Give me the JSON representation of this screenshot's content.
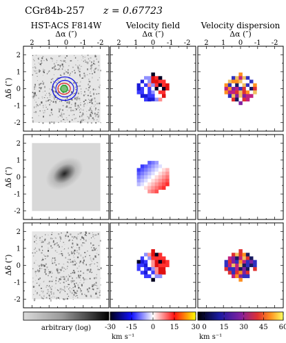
{
  "header": {
    "object_name": "CGr84b-257",
    "redshift_label": "z = 0.67723"
  },
  "columns": [
    {
      "title": "HST-ACS F814W",
      "xlabel": "Δα (″)"
    },
    {
      "title": "Velocity field",
      "xlabel": "Δα (″)"
    },
    {
      "title": "Velocity dispersion",
      "xlabel": "Δα (″)"
    }
  ],
  "axes": {
    "ylabel": "Δδ (″)",
    "x_ticks": [
      "2",
      "1",
      "0",
      "-1",
      "-2"
    ],
    "y_ticks": [
      "2",
      "1",
      "0",
      "-1",
      "-2"
    ]
  },
  "colorbars": [
    {
      "label": "arbitrary (log)",
      "unit": "",
      "ticks": [],
      "gradient": [
        "#d8d8d8",
        "#000000"
      ]
    },
    {
      "label": "",
      "unit": "km s⁻¹",
      "ticks": [
        "-30",
        "-15",
        "0",
        "15",
        "30"
      ],
      "range": [
        -30,
        30
      ],
      "gradient": [
        "#000010",
        "#0000ff",
        "#ffffff",
        "#ff0000",
        "#ffff00"
      ]
    },
    {
      "label": "",
      "unit": "km s⁻¹",
      "ticks": [
        "0",
        "15",
        "30",
        "45",
        "60"
      ],
      "range": [
        -5,
        60
      ],
      "gradient": [
        "#000000",
        "#1a1aa0",
        "#8020a0",
        "#e03030",
        "#ff9020",
        "#ffff60"
      ]
    }
  ],
  "colors": {
    "noise_gray": "#9a9a9a",
    "contour_blue": "#1010e0",
    "contour_red": "#e02020",
    "contour_green": "#20a020",
    "ellipse_gray": "#808080",
    "psf_gray": "#c8c8c8",
    "vel_dispersion_dark_blue": "#1a1a8c"
  }
}
